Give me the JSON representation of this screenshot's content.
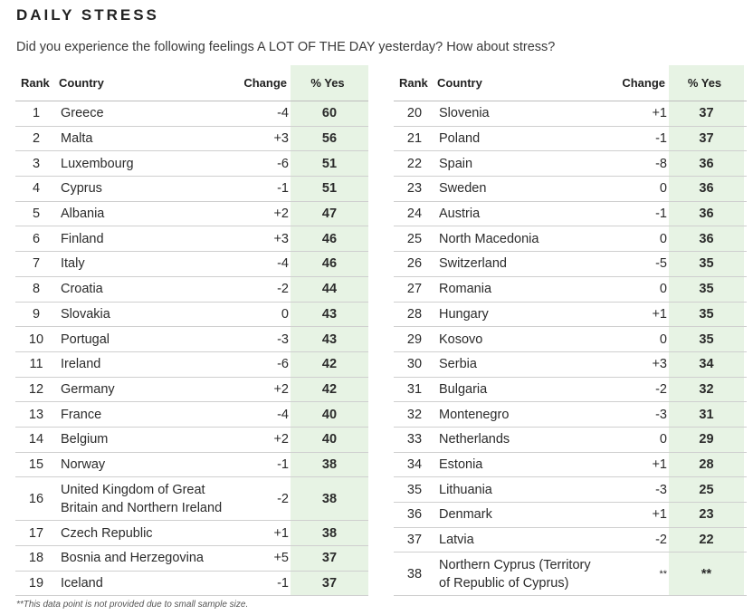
{
  "title": "DAILY STRESS",
  "subtitle": "Did you experience the following feelings A LOT OF THE DAY yesterday? How about stress?",
  "headers": {
    "rank": "Rank",
    "country": "Country",
    "change": "Change",
    "pct": "% Yes"
  },
  "left": [
    {
      "rank": "1",
      "country": "Greece",
      "change": "-4",
      "pct": "60"
    },
    {
      "rank": "2",
      "country": "Malta",
      "change": "+3",
      "pct": "56"
    },
    {
      "rank": "3",
      "country": "Luxembourg",
      "change": "-6",
      "pct": "51"
    },
    {
      "rank": "4",
      "country": "Cyprus",
      "change": "-1",
      "pct": "51"
    },
    {
      "rank": "5",
      "country": "Albania",
      "change": "+2",
      "pct": "47"
    },
    {
      "rank": "6",
      "country": "Finland",
      "change": "+3",
      "pct": "46"
    },
    {
      "rank": "7",
      "country": "Italy",
      "change": "-4",
      "pct": "46"
    },
    {
      "rank": "8",
      "country": "Croatia",
      "change": "-2",
      "pct": "44"
    },
    {
      "rank": "9",
      "country": "Slovakia",
      "change": "0",
      "pct": "43"
    },
    {
      "rank": "10",
      "country": "Portugal",
      "change": "-3",
      "pct": "43"
    },
    {
      "rank": "11",
      "country": "Ireland",
      "change": "-6",
      "pct": "42"
    },
    {
      "rank": "12",
      "country": "Germany",
      "change": "+2",
      "pct": "42"
    },
    {
      "rank": "13",
      "country": "France",
      "change": "-4",
      "pct": "40"
    },
    {
      "rank": "14",
      "country": "Belgium",
      "change": "+2",
      "pct": "40"
    },
    {
      "rank": "15",
      "country": "Norway",
      "change": "-1",
      "pct": "38"
    },
    {
      "rank": "16",
      "country": "United Kingdom of Great Britain and Northern Ireland",
      "change": "-2",
      "pct": "38"
    },
    {
      "rank": "17",
      "country": "Czech Republic",
      "change": "+1",
      "pct": "38"
    },
    {
      "rank": "18",
      "country": "Bosnia and Herzegovina",
      "change": "+5",
      "pct": "37"
    },
    {
      "rank": "19",
      "country": "Iceland",
      "change": "-1",
      "pct": "37"
    }
  ],
  "right": [
    {
      "rank": "20",
      "country": "Slovenia",
      "change": "+1",
      "pct": "37"
    },
    {
      "rank": "21",
      "country": "Poland",
      "change": "-1",
      "pct": "37"
    },
    {
      "rank": "22",
      "country": "Spain",
      "change": "-8",
      "pct": "36"
    },
    {
      "rank": "23",
      "country": "Sweden",
      "change": "0",
      "pct": "36"
    },
    {
      "rank": "24",
      "country": "Austria",
      "change": "-1",
      "pct": "36"
    },
    {
      "rank": "25",
      "country": "North Macedonia",
      "change": "0",
      "pct": "36"
    },
    {
      "rank": "26",
      "country": "Switzerland",
      "change": "-5",
      "pct": "35"
    },
    {
      "rank": "27",
      "country": "Romania",
      "change": "0",
      "pct": "35"
    },
    {
      "rank": "28",
      "country": "Hungary",
      "change": "+1",
      "pct": "35"
    },
    {
      "rank": "29",
      "country": "Kosovo",
      "change": "0",
      "pct": "35"
    },
    {
      "rank": "30",
      "country": "Serbia",
      "change": "+3",
      "pct": "34"
    },
    {
      "rank": "31",
      "country": "Bulgaria",
      "change": "-2",
      "pct": "32"
    },
    {
      "rank": "32",
      "country": "Montenegro",
      "change": "-3",
      "pct": "31"
    },
    {
      "rank": "33",
      "country": "Netherlands",
      "change": "0",
      "pct": "29"
    },
    {
      "rank": "34",
      "country": "Estonia",
      "change": "+1",
      "pct": "28"
    },
    {
      "rank": "35",
      "country": "Lithuania",
      "change": "-3",
      "pct": "25"
    },
    {
      "rank": "36",
      "country": "Denmark",
      "change": "+1",
      "pct": "23"
    },
    {
      "rank": "37",
      "country": "Latvia",
      "change": "-2",
      "pct": "22"
    },
    {
      "rank": "38",
      "country": "Northern Cyprus (Territory of Republic of Cyprus)",
      "change": "**",
      "pct": "**"
    }
  ],
  "footnote": "**This data point is not provided due to small sample size."
}
